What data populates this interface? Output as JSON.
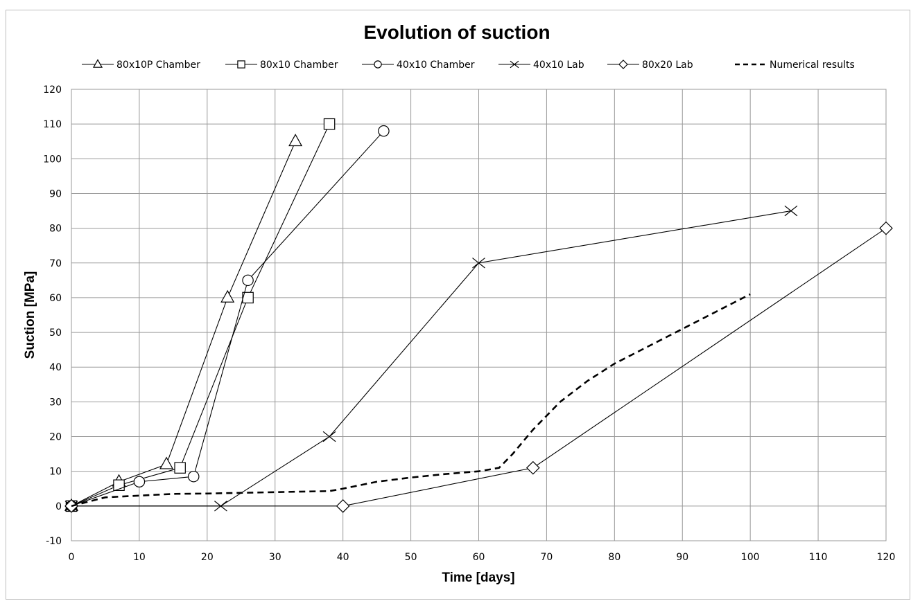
{
  "chart_data": {
    "type": "line",
    "title": "Evolution of suction",
    "xlabel": "Time [days]",
    "ylabel": "Suction [MPa]",
    "xlim": [
      0,
      120
    ],
    "ylim": [
      -10,
      120
    ],
    "xticks": [
      0,
      10,
      20,
      30,
      40,
      50,
      60,
      70,
      80,
      90,
      100,
      110,
      120
    ],
    "yticks": [
      -10,
      0,
      10,
      20,
      30,
      40,
      50,
      60,
      70,
      80,
      90,
      100,
      110,
      120
    ],
    "grid": true,
    "legend_position": "top",
    "series": [
      {
        "name": "80x10P Chamber",
        "marker": "triangle",
        "line": "solid",
        "color": "#000000",
        "x": [
          0,
          7,
          14,
          23,
          33
        ],
        "y": [
          0,
          7,
          12,
          60,
          105
        ]
      },
      {
        "name": "80x10 Chamber",
        "marker": "square",
        "line": "solid",
        "color": "#000000",
        "x": [
          0,
          7,
          16,
          26,
          38
        ],
        "y": [
          0,
          6,
          11,
          60,
          110
        ]
      },
      {
        "name": "40x10 Chamber",
        "marker": "circle",
        "line": "solid",
        "color": "#000000",
        "x": [
          0,
          10,
          18,
          26,
          46
        ],
        "y": [
          0,
          7,
          8.5,
          65,
          108
        ]
      },
      {
        "name": "40x10 Lab",
        "marker": "x",
        "line": "solid",
        "color": "#000000",
        "x": [
          0,
          22,
          38,
          60,
          106
        ],
        "y": [
          0,
          0,
          20,
          70,
          85
        ]
      },
      {
        "name": "80x20 Lab",
        "marker": "diamond",
        "line": "solid",
        "color": "#000000",
        "x": [
          0,
          40,
          68,
          120
        ],
        "y": [
          0,
          0,
          11,
          80
        ]
      },
      {
        "name": "Numerical results",
        "marker": "none",
        "line": "dashed",
        "color": "#000000",
        "x": [
          0,
          5,
          10,
          15,
          20,
          25,
          30,
          35,
          38,
          40,
          45,
          50,
          55,
          60,
          63,
          65,
          68,
          72,
          76,
          80,
          85,
          90,
          95,
          100
        ],
        "y": [
          0,
          2.5,
          3,
          3.5,
          3.6,
          3.8,
          4,
          4.2,
          4.3,
          5,
          7,
          8.2,
          9.2,
          10,
          11,
          15,
          22,
          30,
          36,
          41,
          46,
          51,
          56,
          61
        ]
      }
    ]
  }
}
